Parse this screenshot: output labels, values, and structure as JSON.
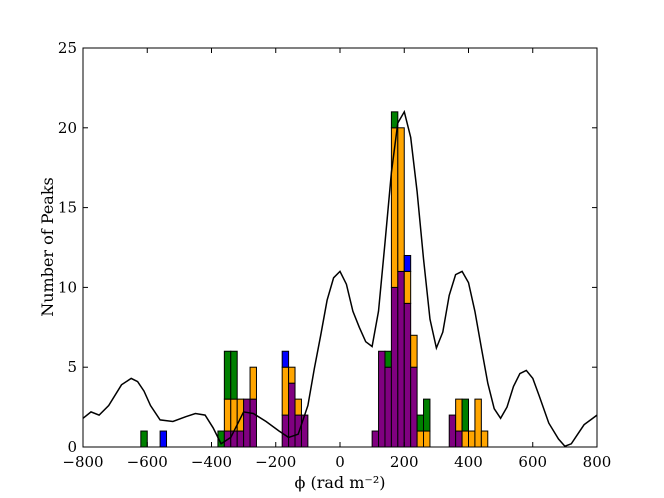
{
  "chart_data": {
    "type": "bar",
    "title": "",
    "xlabel": "ϕ (rad m⁻²)",
    "ylabel": "Number of Peaks",
    "xlim": [
      -800,
      800
    ],
    "ylim": [
      0,
      25
    ],
    "xticks": [
      "−800",
      "−600",
      "−400",
      "−200",
      "0",
      "200",
      "400",
      "600",
      "800"
    ],
    "yticks": [
      "0",
      "5",
      "10",
      "15",
      "20",
      "25"
    ],
    "grid": false,
    "legend": "none",
    "bin_width": 20,
    "bins": [
      -620,
      -560,
      -380,
      -360,
      -340,
      -320,
      -300,
      -280,
      -180,
      -160,
      -140,
      -120,
      100,
      120,
      140,
      160,
      180,
      200,
      220,
      240,
      260,
      280,
      340,
      360,
      380,
      400,
      420,
      440
    ],
    "series": [
      {
        "color": "#800080",
        "values": [
          0,
          0,
          0,
          1,
          1,
          1,
          3,
          3,
          2,
          4,
          2,
          2,
          1,
          6,
          5,
          10,
          11,
          9,
          5,
          0,
          0,
          0,
          2,
          1,
          0,
          0,
          0,
          0
        ]
      },
      {
        "color": "#FFA500",
        "values": [
          0,
          0,
          0,
          2,
          2,
          2,
          0,
          2,
          3,
          1,
          1,
          0,
          0,
          0,
          0,
          10,
          9,
          2,
          2,
          1,
          1,
          0,
          0,
          2,
          1,
          1,
          3,
          1
        ]
      },
      {
        "color": "#008000",
        "values": [
          1,
          0,
          1,
          3,
          3,
          0,
          0,
          0,
          0,
          0,
          0,
          0,
          0,
          0,
          1,
          1,
          0,
          0,
          0,
          1,
          2,
          0,
          0,
          0,
          2,
          0,
          0,
          0
        ]
      },
      {
        "color": "#0000FF",
        "values": [
          0,
          1,
          0,
          0,
          0,
          0,
          0,
          0,
          1,
          0,
          0,
          0,
          0,
          0,
          0,
          0,
          0,
          1,
          0,
          0,
          0,
          0,
          0,
          0,
          0,
          0,
          0,
          0
        ]
      }
    ],
    "rmsf_curve": {
      "color": "#000000",
      "x": [
        -800,
        -775,
        -750,
        -720,
        -680,
        -650,
        -630,
        -610,
        -590,
        -560,
        -520,
        -480,
        -450,
        -420,
        -395,
        -370,
        -340,
        -320,
        -300,
        -270,
        -230,
        -190,
        -160,
        -130,
        -100,
        -80,
        -60,
        -40,
        -20,
        0,
        20,
        40,
        60,
        80,
        100,
        120,
        140,
        160,
        180,
        200,
        220,
        240,
        260,
        280,
        300,
        320,
        340,
        360,
        380,
        400,
        420,
        440,
        460,
        480,
        500,
        520,
        540,
        560,
        580,
        600,
        620,
        650,
        680,
        700,
        720,
        740,
        760,
        780,
        800
      ],
      "y": [
        1.8,
        2.2,
        2.0,
        2.6,
        3.9,
        4.3,
        4.1,
        3.5,
        2.6,
        1.7,
        1.6,
        1.9,
        2.1,
        2.0,
        1.2,
        0.2,
        0.6,
        1.4,
        2.2,
        2.1,
        1.6,
        1.0,
        0.6,
        0.8,
        2.6,
        4.9,
        7.0,
        9.2,
        10.6,
        11.0,
        10.2,
        8.5,
        7.5,
        6.6,
        6.3,
        8.5,
        12.8,
        17.2,
        20.3,
        21.0,
        19.4,
        16.0,
        11.8,
        8.0,
        6.2,
        7.2,
        9.5,
        10.8,
        11.0,
        10.3,
        8.5,
        6.2,
        4.0,
        2.4,
        1.8,
        2.5,
        3.8,
        4.6,
        4.8,
        4.3,
        3.2,
        1.5,
        0.5,
        0.05,
        0.2,
        0.8,
        1.4,
        1.7,
        2.0
      ]
    }
  }
}
